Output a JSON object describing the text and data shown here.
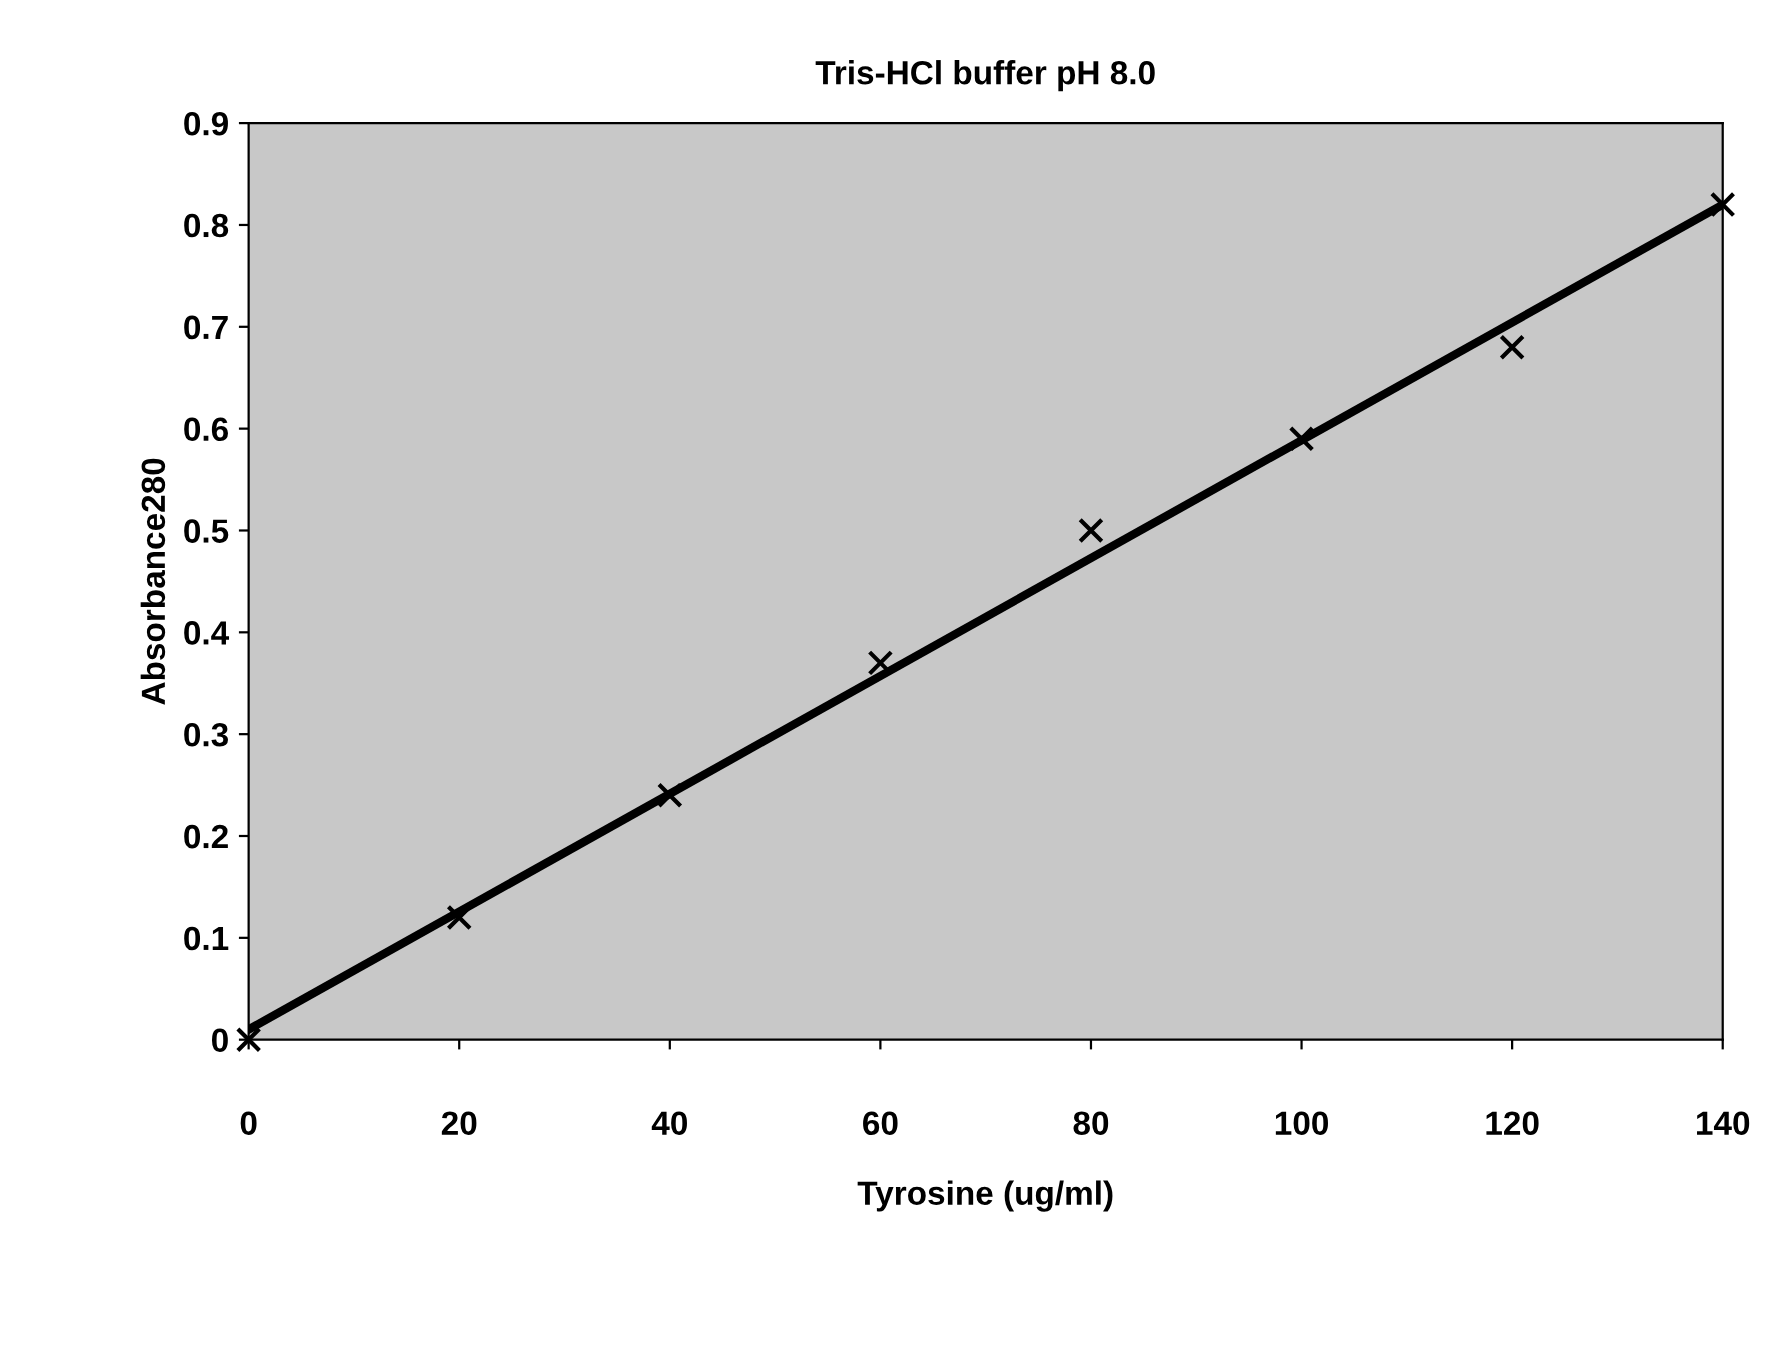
{
  "chart_data": {
    "type": "scatter",
    "title": "Tris-HCl buffer pH 8.0",
    "xlabel": "Tyrosine (ug/ml)",
    "ylabel": "Absorbance280",
    "series": [
      {
        "color": "#000000",
        "marker": "cross",
        "x": [
          0,
          20,
          40,
          60,
          80,
          100,
          120,
          140
        ],
        "values": [
          0,
          0.12,
          0.24,
          0.37,
          0.5,
          0.59,
          0.68,
          0.82
        ]
      },
      {
        "type": "line",
        "color": "#000000",
        "marker": "none",
        "line_style": "solid",
        "x": [
          0,
          140
        ],
        "values": [
          0.01,
          0.82
        ]
      }
    ],
    "xlim": [
      0,
      140
    ],
    "ylim": [
      0,
      0.9
    ],
    "xticks": [
      0,
      20,
      40,
      60,
      80,
      100,
      120,
      140
    ],
    "yticks": [
      0,
      0.1,
      0.2,
      0.3,
      0.4,
      0.5,
      0.6,
      0.7,
      0.8,
      0.9
    ],
    "grid": false,
    "legend": false
  }
}
